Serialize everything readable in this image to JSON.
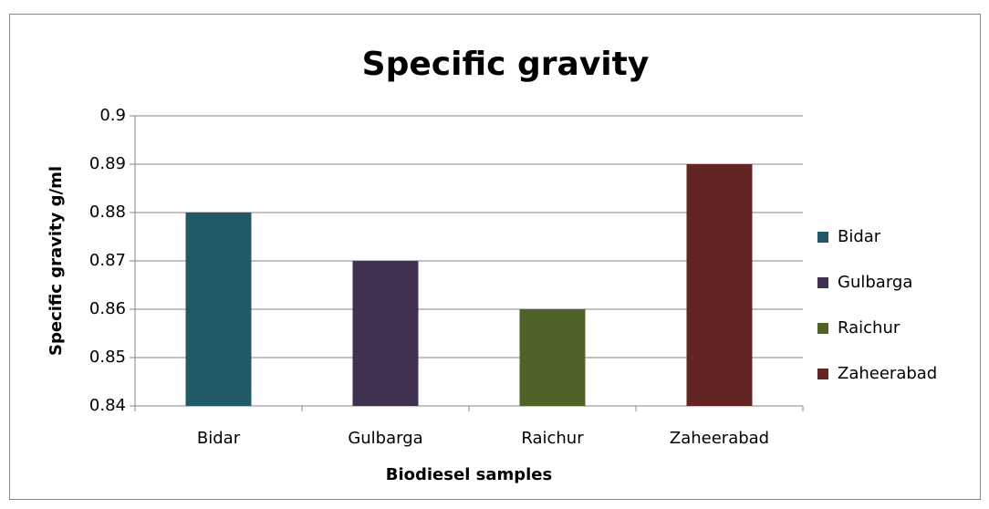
{
  "chart_data": {
    "type": "bar",
    "title": "Specific gravity",
    "x_label": "Biodiesel samples",
    "y_label": "Specific gravity g/ml",
    "categories": [
      "Bidar",
      "Gulbarga",
      "Raichur",
      "Zaheerabad"
    ],
    "values": [
      0.88,
      0.87,
      0.86,
      0.89
    ],
    "colors": [
      "#215968",
      "#403151",
      "#4f6228",
      "#632523"
    ],
    "ylim": [
      0.84,
      0.9
    ],
    "yticks": [
      0.84,
      0.85,
      0.86,
      0.87,
      0.88,
      0.89,
      0.9
    ],
    "grid": true,
    "legend": "right"
  }
}
